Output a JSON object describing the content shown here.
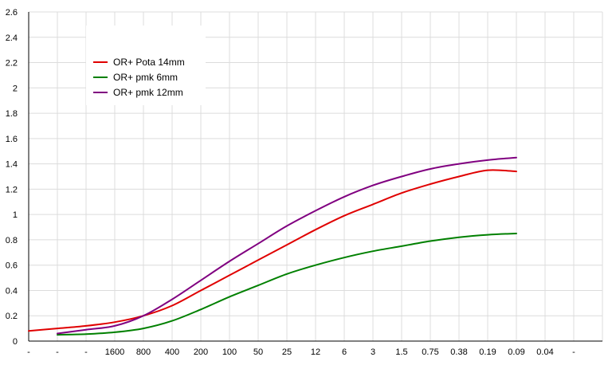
{
  "chart_data": {
    "type": "line",
    "title": "",
    "xlabel": "",
    "ylabel": "",
    "categories": [
      "-",
      "-",
      "-",
      "1600",
      "800",
      "400",
      "200",
      "100",
      "50",
      "25",
      "12",
      "6",
      "3",
      "1.5",
      "0.75",
      "0.38",
      "0.19",
      "0.09",
      "0.04",
      "-"
    ],
    "ylim": [
      0,
      2.6
    ],
    "yticks": [
      "0",
      "0.2",
      "0.4",
      "0.6",
      "0.8",
      "1",
      "1.2",
      "1.4",
      "1.6",
      "1.8",
      "2",
      "2.2",
      "2.4",
      "2.6"
    ],
    "grid": true,
    "legend_position": "top-left",
    "series": [
      {
        "name": "OR+ Pota 14mm",
        "color": "#e00000",
        "x": [
          "-",
          "-",
          "-",
          "1600",
          "800",
          "400",
          "200",
          "100",
          "50",
          "25",
          "12",
          "6",
          "3",
          "1.5",
          "0.75",
          "0.38",
          "0.19",
          "0.09"
        ],
        "values": [
          0.08,
          0.1,
          0.12,
          0.15,
          0.2,
          0.28,
          0.4,
          0.52,
          0.64,
          0.76,
          0.88,
          0.99,
          1.08,
          1.17,
          1.24,
          1.3,
          1.35,
          1.34
        ]
      },
      {
        "name": "OR+ pmk 6mm",
        "color": "#008000",
        "x": [
          "-",
          "-",
          "1600",
          "800",
          "400",
          "200",
          "100",
          "50",
          "25",
          "12",
          "6",
          "3",
          "1.5",
          "0.75",
          "0.38",
          "0.19",
          "0.09"
        ],
        "values": [
          0.05,
          0.055,
          0.07,
          0.1,
          0.16,
          0.25,
          0.35,
          0.44,
          0.53,
          0.6,
          0.66,
          0.71,
          0.75,
          0.79,
          0.82,
          0.84,
          0.85
        ]
      },
      {
        "name": "OR+ pmk 12mm",
        "color": "#800080",
        "x": [
          "-",
          "-",
          "1600",
          "800",
          "400",
          "200",
          "100",
          "50",
          "25",
          "12",
          "6",
          "3",
          "1.5",
          "0.75",
          "0.38",
          "0.19",
          "0.09"
        ],
        "values": [
          0.06,
          0.09,
          0.12,
          0.2,
          0.33,
          0.48,
          0.63,
          0.77,
          0.91,
          1.03,
          1.14,
          1.23,
          1.3,
          1.36,
          1.4,
          1.43,
          1.45
        ]
      }
    ]
  }
}
